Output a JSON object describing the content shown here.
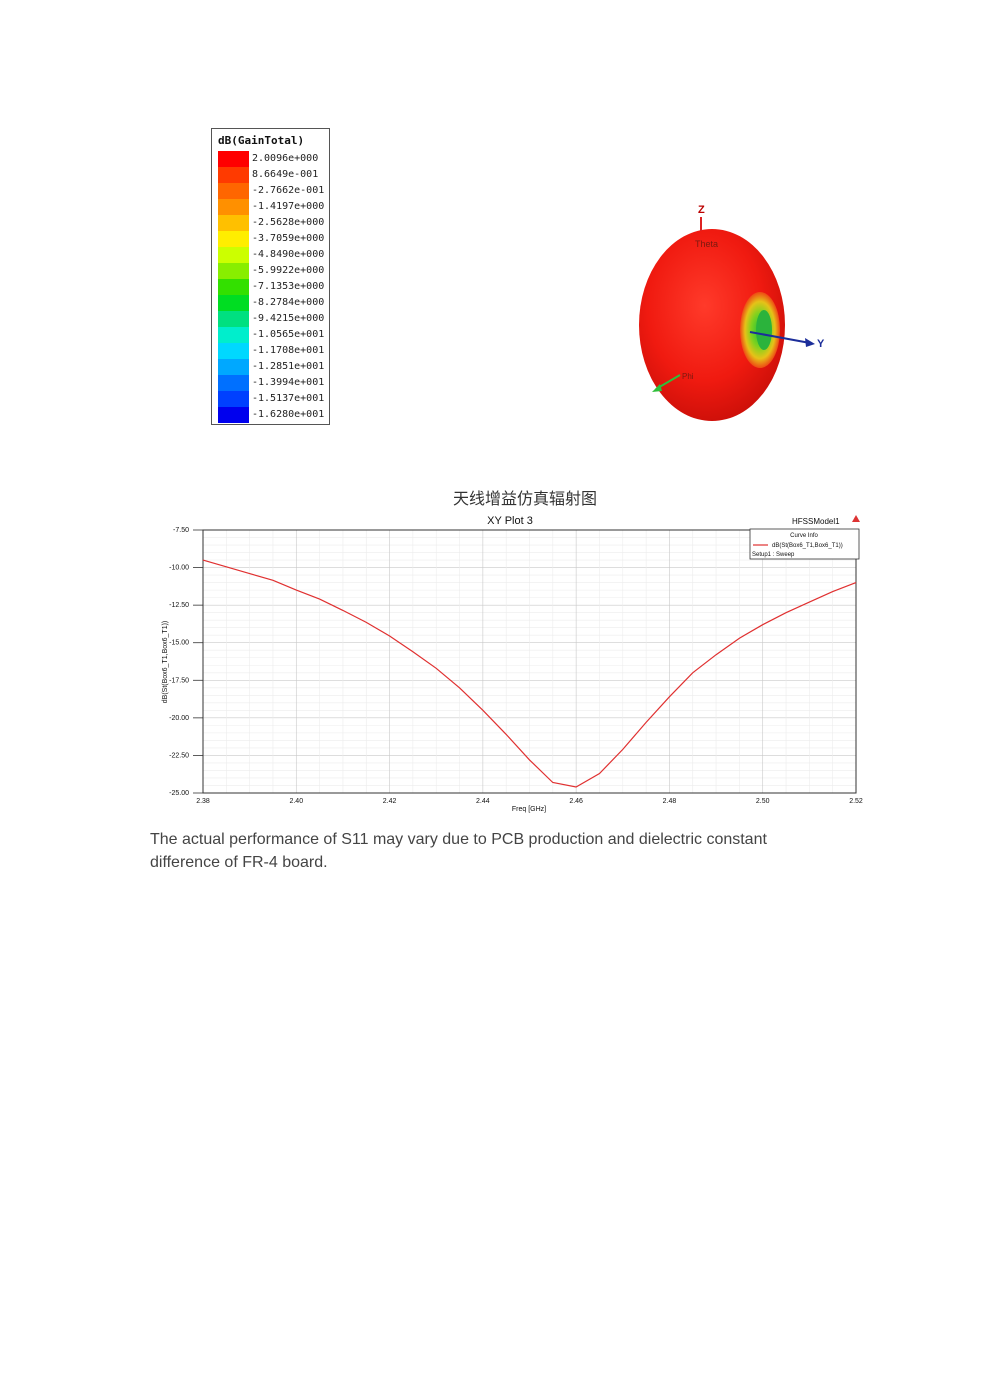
{
  "legend": {
    "title": "dB(GainTotal)",
    "entries": [
      {
        "label": "2.0096e+000",
        "color": "#ff0000"
      },
      {
        "label": "8.6649e-001",
        "color": "#ff3a00"
      },
      {
        "label": "-2.7662e-001",
        "color": "#ff6600"
      },
      {
        "label": "-1.4197e+000",
        "color": "#ff9000"
      },
      {
        "label": "-2.5628e+000",
        "color": "#ffc000"
      },
      {
        "label": "-3.7059e+000",
        "color": "#ffee00"
      },
      {
        "label": "-4.8490e+000",
        "color": "#ccff00"
      },
      {
        "label": "-5.9922e+000",
        "color": "#88ee00"
      },
      {
        "label": "-7.1353e+000",
        "color": "#33e000"
      },
      {
        "label": "-8.2784e+000",
        "color": "#00dd22"
      },
      {
        "label": "-9.4215e+000",
        "color": "#00e080"
      },
      {
        "label": "-1.0565e+001",
        "color": "#00eecc"
      },
      {
        "label": "-1.1708e+001",
        "color": "#00d8ff"
      },
      {
        "label": "-1.2851e+001",
        "color": "#00a8ff"
      },
      {
        "label": "-1.3994e+001",
        "color": "#0070ff"
      },
      {
        "label": "-1.5137e+001",
        "color": "#0040ff"
      },
      {
        "label": "-1.6280e+001",
        "color": "#0000ee"
      }
    ]
  },
  "pattern": {
    "axis_z": "Z",
    "axis_y": "Y",
    "theta_label": "Theta",
    "phi_label": "Phi"
  },
  "caption": "天线增益仿真辐射图",
  "chart_data": {
    "type": "line",
    "title": "XY Plot 3",
    "model_label": "HFSSModel1",
    "legend_header": "Curve Info",
    "xlabel": "Freq [GHz]",
    "ylabel": "dB(St(Box6_T1,Box6_T1))",
    "xlim": [
      2.38,
      2.52
    ],
    "ylim": [
      -25.0,
      -7.5
    ],
    "x_ticks": [
      "2.38",
      "2.40",
      "2.42",
      "2.44",
      "2.46",
      "2.48",
      "2.50",
      "2.52"
    ],
    "y_ticks": [
      "-7.50",
      "-10.00",
      "-12.50",
      "-15.00",
      "-17.50",
      "-20.00",
      "-22.50",
      "-25.00"
    ],
    "series": [
      {
        "name": "dB(St(Box6_T1,Box6_T1))",
        "setup": "Setup1 : Sweep",
        "color": "#e03030",
        "x": [
          2.38,
          2.385,
          2.39,
          2.395,
          2.4,
          2.405,
          2.41,
          2.415,
          2.42,
          2.425,
          2.43,
          2.435,
          2.44,
          2.445,
          2.45,
          2.455,
          2.46,
          2.465,
          2.47,
          2.475,
          2.48,
          2.485,
          2.49,
          2.495,
          2.5,
          2.505,
          2.51,
          2.515,
          2.52
        ],
        "y": [
          -9.5,
          -9.95,
          -10.4,
          -10.85,
          -11.5,
          -12.1,
          -12.85,
          -13.65,
          -14.55,
          -15.6,
          -16.7,
          -18.0,
          -19.5,
          -21.1,
          -22.8,
          -24.3,
          -24.6,
          -23.7,
          -22.1,
          -20.3,
          -18.6,
          -17.0,
          -15.8,
          -14.7,
          -13.8,
          -13.0,
          -12.3,
          -11.6,
          -11.0
        ]
      }
    ],
    "grid": true
  },
  "note": "The actual performance of S11 may vary due to PCB production and dielectric constant difference of FR-4 board."
}
